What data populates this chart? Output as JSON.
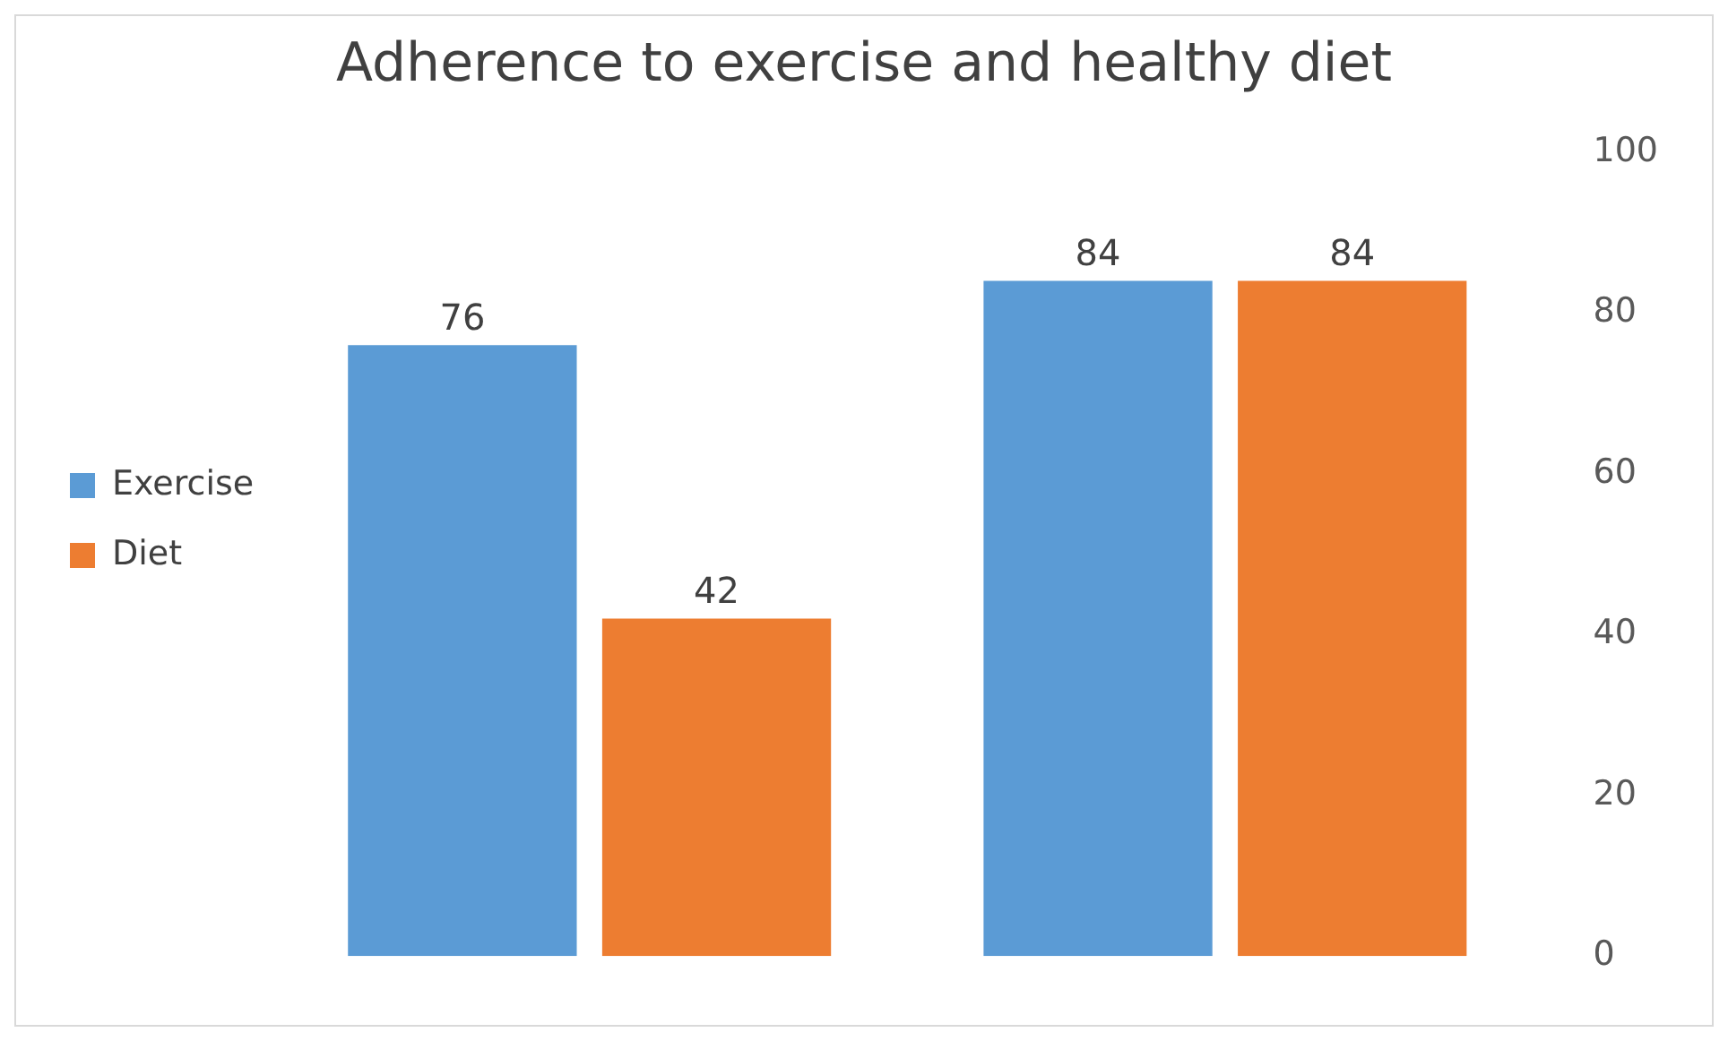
{
  "chart_data": {
    "type": "bar",
    "title": "Adherence to exercise and healthy diet",
    "categories": [
      null,
      null
    ],
    "series": [
      {
        "name": "Exercise",
        "color": "#5b9bd5",
        "values": [
          76,
          84
        ]
      },
      {
        "name": "Diet",
        "color": "#ed7d31",
        "values": [
          42,
          84
        ]
      }
    ],
    "ylim": [
      0,
      100
    ],
    "yticks": [
      0,
      20,
      40,
      60,
      80,
      100
    ],
    "grid": false,
    "legend": "left",
    "data_labels": true
  }
}
